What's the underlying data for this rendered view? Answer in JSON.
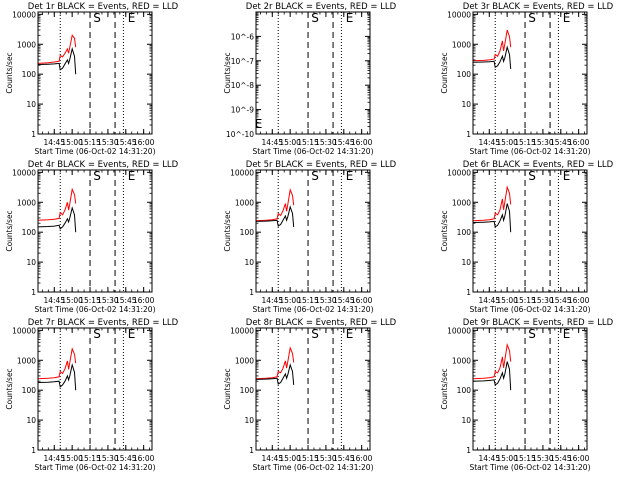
{
  "figure": {
    "xlabel": "Start Time (06-Oct-02 14:31:20)",
    "ylabel": "Counts/sec",
    "x_tick_labels": [
      "14:45",
      "15:00",
      "15:15",
      "15:30",
      "15:45",
      "16:00"
    ],
    "y_tick_labels_main": [
      "1",
      "10",
      "100",
      "1000",
      "10000"
    ],
    "colors": {
      "events": "#000000",
      "lld": "#ff0000",
      "frame": "#000000"
    }
  },
  "chart_data": [
    {
      "type": "line",
      "title": "Det 1r BLACK = Events, RED = LLD",
      "xlabel": "Start Time (06-Oct-02 14:31:20)",
      "ylabel": "Counts/sec",
      "xlim": [
        "14:31:20",
        "16:07"
      ],
      "ylim": [
        1,
        12000
      ],
      "yscale": "log",
      "vlines": {
        "dotted": [
          "14:50",
          "15:43"
        ],
        "dashed": [
          "15:15",
          "15:36"
        ]
      },
      "markers": [
        {
          "label": "S",
          "x": "15:16"
        },
        {
          "label": "E",
          "x": "15:45"
        }
      ],
      "series": [
        {
          "name": "LLD",
          "color": "#ff0000",
          "x": [
            "14:31:20",
            "14:40",
            "14:45",
            "14:49",
            "14:50",
            "14:52",
            "14:54",
            "14:56",
            "14:57",
            "14:58",
            "15:00",
            "15:02",
            "15:03"
          ],
          "y": [
            230,
            240,
            255,
            270,
            420,
            380,
            500,
            700,
            500,
            800,
            2000,
            1600,
            800
          ]
        },
        {
          "name": "Events",
          "color": "#000000",
          "x": [
            "14:31:20",
            "14:40",
            "14:45",
            "14:49",
            "14:50",
            "14:52",
            "14:54",
            "14:56",
            "14:57",
            "14:58",
            "15:00",
            "15:02",
            "15:03"
          ],
          "y": [
            210,
            215,
            220,
            230,
            140,
            160,
            220,
            300,
            230,
            320,
            700,
            400,
            100
          ]
        }
      ]
    },
    {
      "type": "line",
      "title": "Det 2r BLACK = Events, RED = LLD",
      "xlabel": "Start Time (06-Oct-02 14:31:20)",
      "ylabel": "Counts/sec",
      "xlim": [
        "14:31:20",
        "16:07"
      ],
      "ylim": [
        1e-10,
        1e-05
      ],
      "yscale": "log",
      "y_tick_labels": [
        "10^-10",
        "10^-9",
        "10^-8",
        "10^-7",
        "10^-6"
      ],
      "vlines": {
        "dotted": [
          "14:50",
          "15:43"
        ],
        "dashed": [
          "15:15",
          "15:36"
        ]
      },
      "markers": [
        {
          "label": "S",
          "x": "15:16"
        },
        {
          "label": "E",
          "x": "15:45"
        },
        {
          "label": "E",
          "x": "14:32"
        }
      ],
      "series": []
    },
    {
      "type": "line",
      "title": "Det 3r BLACK = Events, RED = LLD",
      "xlabel": "Start Time (06-Oct-02 14:31:20)",
      "ylabel": "Counts/sec",
      "xlim": [
        "14:31:20",
        "16:07"
      ],
      "ylim": [
        1,
        12000
      ],
      "yscale": "log",
      "vlines": {
        "dotted": [
          "14:50",
          "15:43"
        ],
        "dashed": [
          "15:15",
          "15:36"
        ]
      },
      "markers": [
        {
          "label": "S",
          "x": "15:16"
        },
        {
          "label": "E",
          "x": "15:45"
        }
      ],
      "series": [
        {
          "name": "LLD",
          "color": "#ff0000",
          "x": [
            "14:31:20",
            "14:40",
            "14:45",
            "14:49",
            "14:50",
            "14:52",
            "14:54",
            "14:56",
            "14:57",
            "14:58",
            "15:00",
            "15:02",
            "15:03"
          ],
          "y": [
            280,
            290,
            300,
            320,
            450,
            400,
            600,
            1300,
            600,
            1000,
            3000,
            1800,
            800
          ]
        },
        {
          "name": "Events",
          "color": "#000000",
          "x": [
            "14:31:20",
            "14:40",
            "14:45",
            "14:49",
            "14:50",
            "14:52",
            "14:54",
            "14:56",
            "14:57",
            "14:58",
            "15:00",
            "15:02",
            "15:03"
          ],
          "y": [
            250,
            255,
            260,
            270,
            170,
            190,
            260,
            400,
            270,
            350,
            800,
            450,
            150
          ]
        }
      ]
    },
    {
      "type": "line",
      "title": "Det 4r BLACK = Events, RED = LLD",
      "xlabel": "Start Time (06-Oct-02 14:31:20)",
      "ylabel": "Counts/sec",
      "xlim": [
        "14:31:20",
        "16:07"
      ],
      "ylim": [
        1,
        12000
      ],
      "yscale": "log",
      "vlines": {
        "dotted": [
          "14:50",
          "15:43"
        ],
        "dashed": [
          "15:15",
          "15:36"
        ]
      },
      "markers": [
        {
          "label": "S",
          "x": "15:16"
        },
        {
          "label": "E",
          "x": "15:45"
        }
      ],
      "series": [
        {
          "name": "LLD",
          "color": "#ff0000",
          "x": [
            "14:31:20",
            "14:40",
            "14:45",
            "14:49",
            "14:50",
            "14:52",
            "14:54",
            "14:56",
            "14:57",
            "14:58",
            "15:00",
            "15:02",
            "15:03"
          ],
          "y": [
            250,
            260,
            270,
            290,
            450,
            380,
            550,
            1000,
            550,
            900,
            2700,
            1800,
            900
          ]
        },
        {
          "name": "Events",
          "color": "#000000",
          "x": [
            "14:31:20",
            "14:40",
            "14:45",
            "14:49",
            "14:50",
            "14:52",
            "14:54",
            "14:56",
            "14:57",
            "14:58",
            "15:00",
            "15:02",
            "15:03"
          ],
          "y": [
            150,
            155,
            160,
            170,
            130,
            150,
            200,
            280,
            220,
            300,
            650,
            380,
            100
          ]
        }
      ]
    },
    {
      "type": "line",
      "title": "Det 5r BLACK = Events, RED = LLD",
      "xlabel": "Start Time (06-Oct-02 14:31:20)",
      "ylabel": "Counts/sec",
      "xlim": [
        "14:31:20",
        "16:07"
      ],
      "ylim": [
        1,
        12000
      ],
      "yscale": "log",
      "vlines": {
        "dotted": [
          "14:50",
          "15:43"
        ],
        "dashed": [
          "15:15",
          "15:36"
        ]
      },
      "markers": [
        {
          "label": "S",
          "x": "15:16"
        },
        {
          "label": "E",
          "x": "15:45"
        }
      ],
      "series": [
        {
          "name": "LLD",
          "color": "#ff0000",
          "x": [
            "14:31:20",
            "14:40",
            "14:45",
            "14:49",
            "14:50",
            "14:52",
            "14:54",
            "14:56",
            "14:57",
            "14:58",
            "15:00",
            "15:02",
            "15:03"
          ],
          "y": [
            240,
            250,
            260,
            280,
            420,
            360,
            520,
            900,
            500,
            850,
            2600,
            1700,
            800
          ]
        },
        {
          "name": "Events",
          "color": "#000000",
          "x": [
            "14:31:20",
            "14:40",
            "14:45",
            "14:49",
            "14:50",
            "14:52",
            "14:54",
            "14:56",
            "14:57",
            "14:58",
            "15:00",
            "15:02",
            "15:03"
          ],
          "y": [
            230,
            235,
            240,
            250,
            160,
            180,
            250,
            350,
            250,
            330,
            700,
            420,
            150
          ]
        }
      ]
    },
    {
      "type": "line",
      "title": "Det 6r BLACK = Events, RED = LLD",
      "xlabel": "Start Time (06-Oct-02 14:31:20)",
      "ylabel": "Counts/sec",
      "xlim": [
        "14:31:20",
        "16:07"
      ],
      "ylim": [
        1,
        12000
      ],
      "yscale": "log",
      "vlines": {
        "dotted": [
          "14:50",
          "15:43"
        ],
        "dashed": [
          "15:15",
          "15:36"
        ]
      },
      "markers": [
        {
          "label": "S",
          "x": "15:16"
        },
        {
          "label": "E",
          "x": "15:45"
        }
      ],
      "series": [
        {
          "name": "LLD",
          "color": "#ff0000",
          "x": [
            "14:31:20",
            "14:40",
            "14:45",
            "14:49",
            "14:50",
            "14:52",
            "14:54",
            "14:56",
            "14:57",
            "14:58",
            "15:00",
            "15:02",
            "15:03"
          ],
          "y": [
            240,
            250,
            260,
            280,
            430,
            380,
            560,
            1300,
            560,
            1000,
            3200,
            2000,
            850
          ]
        },
        {
          "name": "Events",
          "color": "#000000",
          "x": [
            "14:31:20",
            "14:40",
            "14:45",
            "14:49",
            "14:50",
            "14:52",
            "14:54",
            "14:56",
            "14:57",
            "14:58",
            "15:00",
            "15:02",
            "15:03"
          ],
          "y": [
            210,
            215,
            220,
            230,
            150,
            170,
            240,
            380,
            250,
            340,
            900,
            500,
            100
          ]
        }
      ]
    },
    {
      "type": "line",
      "title": "Det 7r BLACK = Events, RED = LLD",
      "xlabel": "Start Time (06-Oct-02 14:31:20)",
      "ylabel": "Counts/sec",
      "xlim": [
        "14:31:20",
        "16:07"
      ],
      "ylim": [
        1,
        12000
      ],
      "yscale": "log",
      "vlines": {
        "dotted": [
          "14:50",
          "15:43"
        ],
        "dashed": [
          "15:15",
          "15:36"
        ]
      },
      "markers": [
        {
          "label": "S",
          "x": "15:16"
        },
        {
          "label": "E",
          "x": "15:45"
        }
      ],
      "series": [
        {
          "name": "LLD",
          "color": "#ff0000",
          "x": [
            "14:31:20",
            "14:40",
            "14:45",
            "14:49",
            "14:50",
            "14:52",
            "14:54",
            "14:56",
            "14:57",
            "14:58",
            "15:00",
            "15:02",
            "15:03"
          ],
          "y": [
            240,
            250,
            260,
            280,
            420,
            360,
            520,
            950,
            500,
            850,
            2400,
            1600,
            800
          ]
        },
        {
          "name": "Events",
          "color": "#000000",
          "x": [
            "14:31:20",
            "14:40",
            "14:45",
            "14:49",
            "14:50",
            "14:52",
            "14:54",
            "14:56",
            "14:57",
            "14:58",
            "15:00",
            "15:02",
            "15:03"
          ],
          "y": [
            180,
            185,
            190,
            200,
            130,
            150,
            200,
            300,
            220,
            300,
            700,
            400,
            100
          ]
        }
      ]
    },
    {
      "type": "line",
      "title": "Det 8r BLACK = Events, RED = LLD",
      "xlabel": "Start Time (06-Oct-02 14:31:20)",
      "ylabel": "Counts/sec",
      "xlim": [
        "14:31:20",
        "16:07"
      ],
      "ylim": [
        1,
        12000
      ],
      "yscale": "log",
      "vlines": {
        "dotted": [
          "14:50",
          "15:43"
        ],
        "dashed": [
          "15:15",
          "15:36"
        ]
      },
      "markers": [
        {
          "label": "S",
          "x": "15:16"
        },
        {
          "label": "E",
          "x": "15:45"
        }
      ],
      "series": [
        {
          "name": "LLD",
          "color": "#ff0000",
          "x": [
            "14:31:20",
            "14:40",
            "14:45",
            "14:49",
            "14:50",
            "14:52",
            "14:54",
            "14:56",
            "14:57",
            "14:58",
            "15:00",
            "15:02",
            "15:03"
          ],
          "y": [
            240,
            250,
            260,
            280,
            420,
            380,
            540,
            950,
            550,
            900,
            2600,
            1700,
            850
          ]
        },
        {
          "name": "Events",
          "color": "#000000",
          "x": [
            "14:31:20",
            "14:40",
            "14:45",
            "14:49",
            "14:50",
            "14:52",
            "14:54",
            "14:56",
            "14:57",
            "14:58",
            "15:00",
            "15:02",
            "15:03"
          ],
          "y": [
            230,
            235,
            240,
            250,
            160,
            180,
            250,
            350,
            250,
            330,
            700,
            420,
            150
          ]
        }
      ]
    },
    {
      "type": "line",
      "title": "Det 9r BLACK = Events, RED = LLD",
      "xlabel": "Start Time (06-Oct-02 14:31:20)",
      "ylabel": "Counts/sec",
      "xlim": [
        "14:31:20",
        "16:07"
      ],
      "ylim": [
        1,
        12000
      ],
      "yscale": "log",
      "vlines": {
        "dotted": [
          "14:50",
          "15:43"
        ],
        "dashed": [
          "15:15",
          "15:36"
        ]
      },
      "markers": [
        {
          "label": "S",
          "x": "15:16"
        },
        {
          "label": "E",
          "x": "15:45"
        }
      ],
      "series": [
        {
          "name": "LLD",
          "color": "#ff0000",
          "x": [
            "14:31:20",
            "14:40",
            "14:45",
            "14:49",
            "14:50",
            "14:52",
            "14:54",
            "14:56",
            "14:57",
            "14:58",
            "15:00",
            "15:02",
            "15:03"
          ],
          "y": [
            240,
            250,
            260,
            280,
            420,
            380,
            560,
            1300,
            560,
            1000,
            3300,
            2100,
            900
          ]
        },
        {
          "name": "Events",
          "color": "#000000",
          "x": [
            "14:31:20",
            "14:40",
            "14:45",
            "14:49",
            "14:50",
            "14:52",
            "14:54",
            "14:56",
            "14:57",
            "14:58",
            "15:00",
            "15:02",
            "15:03"
          ],
          "y": [
            200,
            205,
            210,
            220,
            150,
            170,
            240,
            380,
            250,
            340,
            900,
            500,
            100
          ]
        }
      ]
    }
  ]
}
